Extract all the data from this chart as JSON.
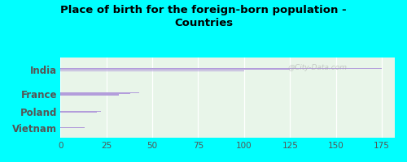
{
  "title": "Place of birth for the foreign-born population -\nCountries",
  "categories": [
    "India",
    "France",
    "Poland",
    "Vietnam"
  ],
  "bars": [
    [
      175,
      125,
      100
    ],
    [
      43,
      38,
      32
    ],
    [
      22,
      20
    ],
    [
      13
    ]
  ],
  "bar_color": "#b39ddb",
  "background_color": "#00ffff",
  "plot_bg_color": "#e8f5e9",
  "axis_label_color": "#555555",
  "title_color": "#000000",
  "xlim": [
    0,
    182
  ],
  "xticks": [
    0,
    25,
    50,
    75,
    100,
    125,
    150,
    175
  ],
  "bar_height": 0.045,
  "bar_gap": 0.055,
  "watermark": "@City-Data.com"
}
